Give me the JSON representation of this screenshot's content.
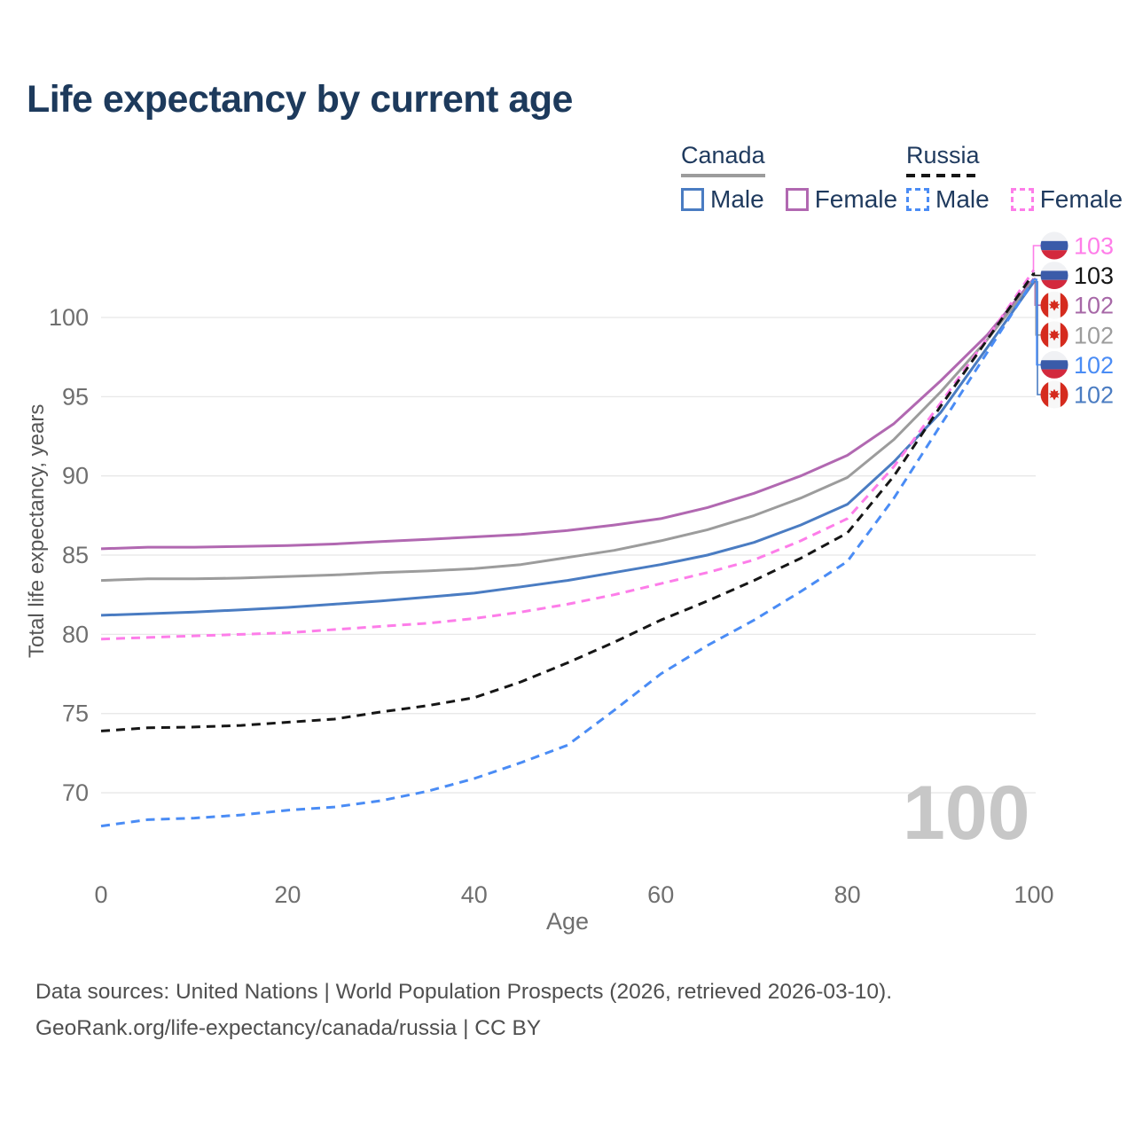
{
  "title": "Life expectancy by current age",
  "watermark": "100",
  "legend": {
    "groups": [
      {
        "id": "canada",
        "label": "Canada",
        "line_style": "solid",
        "color": "#9c9c9c",
        "items": [
          {
            "id": "canada-male",
            "label": "Male",
            "color": "#4a7cc2",
            "dash": false
          },
          {
            "id": "canada-female",
            "label": "Female",
            "color": "#b168b1",
            "dash": false
          }
        ]
      },
      {
        "id": "russia",
        "label": "Russia",
        "line_style": "dashed",
        "color": "#161616",
        "items": [
          {
            "id": "russia-male",
            "label": "Male",
            "color": "#4a8cf5",
            "dash": true
          },
          {
            "id": "russia-female",
            "label": "Female",
            "color": "#fd7de9",
            "dash": true
          }
        ]
      }
    ]
  },
  "footer": {
    "line1": "Data sources: United Nations | World Population Prospects (2026, retrieved 2026-03-10).",
    "line2": "GeoRank.org/life-expectancy/canada/russia | CC BY"
  },
  "chart_data": {
    "type": "line",
    "title": "Life expectancy by current age",
    "xlabel": "Age",
    "ylabel": "Total life expectancy, years",
    "xlim": [
      0,
      100
    ],
    "ylim": [
      66,
      104
    ],
    "xticks": [
      0,
      20,
      40,
      60,
      80,
      100
    ],
    "yticks": [
      70,
      75,
      80,
      85,
      90,
      95,
      100
    ],
    "grid": "horizontal",
    "legend_position": "top-right",
    "x": [
      0,
      5,
      10,
      15,
      20,
      25,
      30,
      35,
      40,
      45,
      50,
      55,
      60,
      65,
      70,
      75,
      80,
      85,
      90,
      95,
      100
    ],
    "series": [
      {
        "name": "Canada Female",
        "country": "Canada",
        "sex": "Female",
        "style": "solid",
        "color": "#b168b1",
        "flag": "canada",
        "end_label": "102",
        "end_label_color": "#a768a7",
        "label_row": 2,
        "values": [
          85.4,
          85.5,
          85.5,
          85.55,
          85.6,
          85.7,
          85.85,
          86.0,
          86.15,
          86.3,
          86.55,
          86.9,
          87.3,
          88.0,
          88.9,
          90.0,
          91.3,
          93.3,
          96.0,
          98.9,
          102.45
        ]
      },
      {
        "name": "Canada Both sexes",
        "country": "Canada",
        "sex": "Both",
        "style": "solid",
        "color": "#9c9c9c",
        "flag": "canada",
        "end_label": "102",
        "end_label_color": "#9c9c9c",
        "label_row": 3,
        "values": [
          83.4,
          83.5,
          83.5,
          83.55,
          83.65,
          83.75,
          83.9,
          84.0,
          84.15,
          84.4,
          84.85,
          85.3,
          85.9,
          86.6,
          87.5,
          88.6,
          89.9,
          92.3,
          95.3,
          98.6,
          102.35
        ]
      },
      {
        "name": "Canada Male",
        "country": "Canada",
        "sex": "Male",
        "style": "solid",
        "color": "#4a7cc2",
        "flag": "canada",
        "end_label": "102",
        "end_label_color": "#4a7cc2",
        "label_row": 5,
        "values": [
          81.2,
          81.3,
          81.4,
          81.55,
          81.7,
          81.9,
          82.1,
          82.35,
          82.6,
          83.0,
          83.4,
          83.9,
          84.4,
          85.0,
          85.8,
          86.9,
          88.2,
          90.9,
          94.0,
          98.1,
          102.25
        ]
      },
      {
        "name": "Russia Female",
        "country": "Russia",
        "sex": "Female",
        "style": "dashed",
        "color": "#fd7de9",
        "flag": "russia",
        "end_label": "103",
        "end_label_color": "#ff7de9",
        "label_row": 0,
        "values": [
          79.7,
          79.8,
          79.9,
          80.0,
          80.1,
          80.3,
          80.5,
          80.7,
          81.0,
          81.4,
          81.9,
          82.5,
          83.2,
          83.9,
          84.7,
          85.9,
          87.3,
          90.6,
          94.6,
          98.7,
          103.0
        ]
      },
      {
        "name": "Russia Both sexes",
        "country": "Russia",
        "sex": "Both",
        "style": "dashed",
        "color": "#161616",
        "flag": "russia",
        "end_label": "103",
        "end_label_color": "#161616",
        "label_row": 1,
        "values": [
          73.9,
          74.1,
          74.15,
          74.25,
          74.45,
          74.65,
          75.1,
          75.5,
          76.0,
          77.0,
          78.2,
          79.5,
          80.9,
          82.1,
          83.4,
          84.8,
          86.4,
          90.0,
          94.4,
          98.6,
          102.8
        ]
      },
      {
        "name": "Russia Male",
        "country": "Russia",
        "sex": "Male",
        "style": "dashed",
        "color": "#4a8cf5",
        "flag": "russia",
        "end_label": "102",
        "end_label_color": "#4a8cf5",
        "label_row": 4,
        "values": [
          67.9,
          68.3,
          68.4,
          68.6,
          68.9,
          69.1,
          69.5,
          70.1,
          70.9,
          71.9,
          73.0,
          75.2,
          77.5,
          79.3,
          80.9,
          82.7,
          84.6,
          88.6,
          93.2,
          97.8,
          102.4
        ]
      }
    ]
  }
}
